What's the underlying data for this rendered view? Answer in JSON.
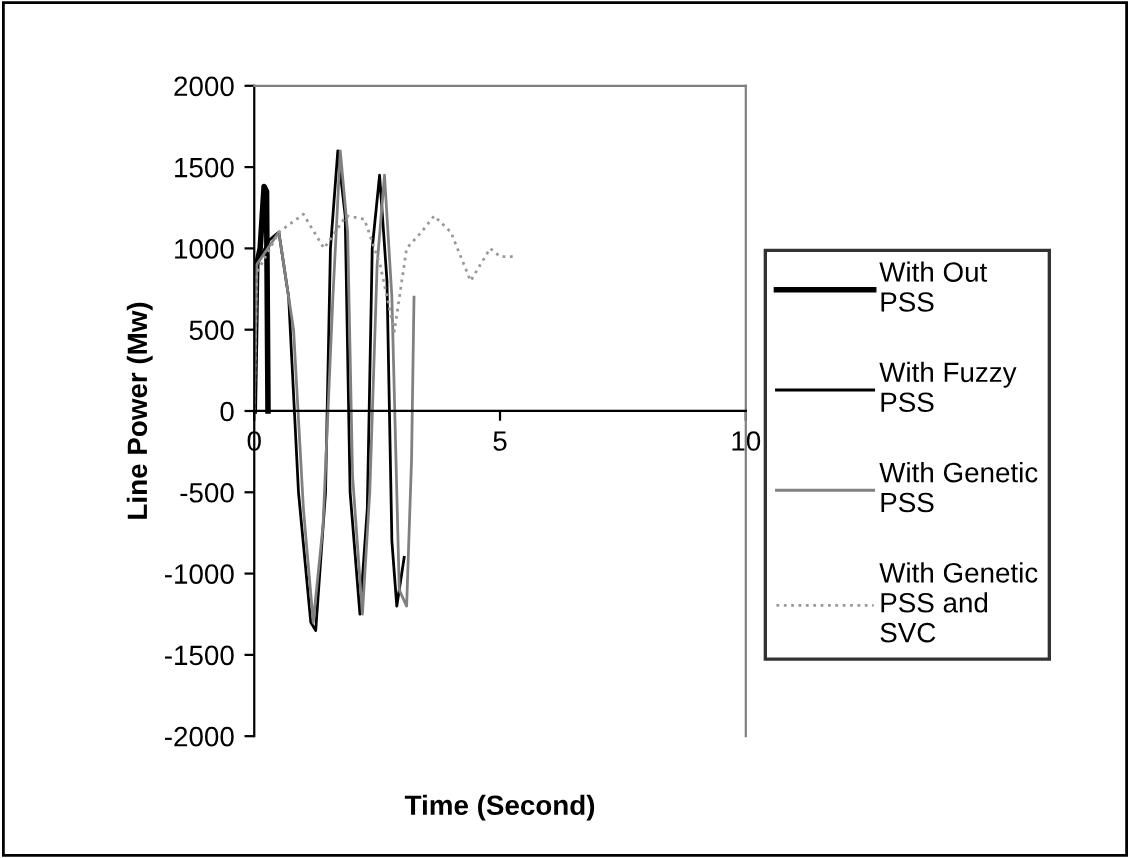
{
  "chart_data": {
    "type": "line",
    "xlabel": "Time (Second)",
    "ylabel": "Line Power (Mw)",
    "xlim": [
      0,
      10
    ],
    "xticks": [
      0,
      5,
      10
    ],
    "ylim": [
      -2000,
      2000
    ],
    "yticks": [
      -2000,
      -1500,
      -1000,
      -500,
      0,
      500,
      1000,
      1500,
      2000
    ],
    "grid": false,
    "legend": "right",
    "marker": "none",
    "series": [
      {
        "name": "With Out\nPSS",
        "color": "#000000",
        "line_style": "solid",
        "x": [
          0,
          0.05,
          0.12,
          0.2,
          0.25,
          0.28
        ],
        "values": [
          0,
          900,
          1000,
          1380,
          1350,
          0
        ]
      },
      {
        "name": "With Fuzzy\nPSS",
        "color": "#000000",
        "line_style": "solid",
        "x": [
          0,
          0.05,
          0.3,
          0.5,
          0.7,
          0.9,
          1.15,
          1.25,
          1.45,
          1.55,
          1.7,
          1.85,
          1.95,
          2.15,
          2.3,
          2.4,
          2.55,
          2.7,
          2.8,
          2.9,
          3.05
        ],
        "values": [
          0,
          900,
          1050,
          1100,
          700,
          -500,
          -1300,
          -1350,
          -500,
          1000,
          1600,
          1200,
          -500,
          -1250,
          -600,
          1000,
          1450,
          800,
          -800,
          -1200,
          -900
        ]
      },
      {
        "name": "With Genetic\nPSS",
        "color": "#808080",
        "line_style": "solid",
        "x": [
          0,
          0.05,
          0.5,
          0.8,
          1.0,
          1.2,
          1.4,
          1.6,
          1.75,
          1.9,
          2.0,
          2.2,
          2.35,
          2.5,
          2.65,
          2.8,
          2.95,
          3.1,
          3.2,
          3.25
        ],
        "values": [
          0,
          900,
          1100,
          500,
          -600,
          -1300,
          -700,
          700,
          1600,
          1100,
          -400,
          -1250,
          -500,
          900,
          1450,
          700,
          -1100,
          -1200,
          -300,
          700
        ]
      },
      {
        "name": "With Genetic\nPSS and\nSVC",
        "color": "#999999",
        "line_style": "dotted",
        "x": [
          0,
          0.05,
          0.5,
          1.0,
          1.42,
          1.87,
          2.24,
          2.56,
          2.85,
          3.1,
          3.4,
          3.66,
          4.0,
          4.4,
          4.8,
          5.0,
          5.3
        ],
        "values": [
          0,
          850,
          1100,
          1210,
          1000,
          1200,
          1180,
          900,
          490,
          1000,
          1100,
          1200,
          1100,
          800,
          1000,
          950,
          950
        ]
      }
    ]
  }
}
